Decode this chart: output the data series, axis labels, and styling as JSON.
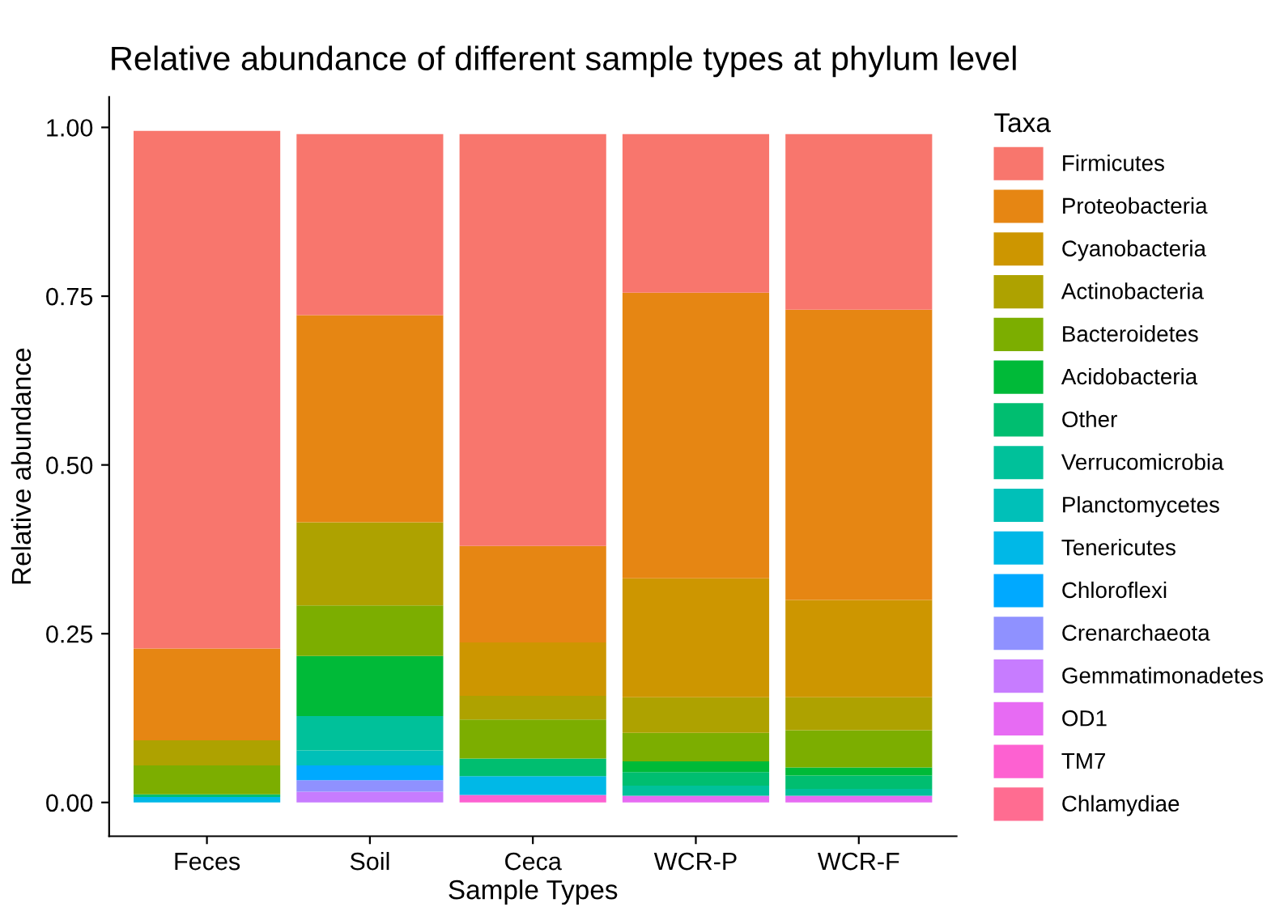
{
  "chart_data": {
    "type": "bar",
    "stacked": true,
    "title": "Relative abundance of different sample types at phylum level",
    "xlabel": "Sample Types",
    "ylabel": "Relative abundance",
    "legend_title": "Taxa",
    "legend": "right",
    "grid": false,
    "categories": [
      "Feces",
      "Soil",
      "Ceca",
      "WCR-P",
      "WCR-F"
    ],
    "ylim": [
      -0.05,
      1.045
    ],
    "yticks": [
      {
        "value": 0,
        "label": "0.00"
      },
      {
        "value": 0.25,
        "label": "0.25"
      },
      {
        "value": 0.5,
        "label": "0.50"
      },
      {
        "value": 0.75,
        "label": "0.75"
      },
      {
        "value": 1,
        "label": "1.00"
      }
    ],
    "series": [
      {
        "name": "Chlamydiae",
        "color": "#ff6c91",
        "values": [
          null,
          null,
          null,
          null,
          null
        ]
      },
      {
        "name": "TM7",
        "color": "#fd61d1",
        "values": [
          null,
          null,
          0.011,
          null,
          null
        ]
      },
      {
        "name": "OD1",
        "color": "#e76bf3",
        "values": [
          null,
          null,
          null,
          0.01,
          0.01
        ]
      },
      {
        "name": "Gemmatimonadetes",
        "color": "#c77cff",
        "values": [
          null,
          0.016,
          null,
          null,
          null
        ]
      },
      {
        "name": "Crenarchaeota",
        "color": "#8f91ff",
        "values": [
          null,
          0.017,
          null,
          null,
          null
        ]
      },
      {
        "name": "Chloroflexi",
        "color": "#00a9ff",
        "values": [
          null,
          0.022,
          null,
          null,
          null
        ]
      },
      {
        "name": "Tenericutes",
        "color": "#00b8e7",
        "values": [
          0.008,
          null,
          0.028,
          null,
          null
        ]
      },
      {
        "name": "Planctomycetes",
        "color": "#00c0b8",
        "values": [
          null,
          0.022,
          null,
          null,
          null
        ]
      },
      {
        "name": "Verrucomicrobia",
        "color": "#00c19a",
        "values": [
          null,
          0.051,
          null,
          0.015,
          0.01
        ]
      },
      {
        "name": "Other",
        "color": "#00be70",
        "values": [
          0.004,
          null,
          0.026,
          0.02,
          0.02
        ]
      },
      {
        "name": "Acidobacteria",
        "color": "#00ba38",
        "values": [
          null,
          0.089,
          null,
          0.016,
          0.012
        ]
      },
      {
        "name": "Bacteroidetes",
        "color": "#7cae00",
        "values": [
          0.043,
          0.075,
          0.058,
          0.042,
          0.055
        ]
      },
      {
        "name": "Actinobacteria",
        "color": "#aea200",
        "values": [
          0.037,
          0.123,
          0.035,
          0.053,
          0.049
        ]
      },
      {
        "name": "Cyanobacteria",
        "color": "#cd9600",
        "values": [
          null,
          null,
          0.079,
          0.176,
          0.144
        ]
      },
      {
        "name": "Proteobacteria",
        "color": "#e68613",
        "values": [
          0.136,
          0.307,
          0.143,
          0.423,
          0.43
        ]
      },
      {
        "name": "Firmicutes",
        "color": "#f8766d",
        "values": [
          0.767,
          0.268,
          0.61,
          0.235,
          0.26
        ]
      }
    ]
  }
}
